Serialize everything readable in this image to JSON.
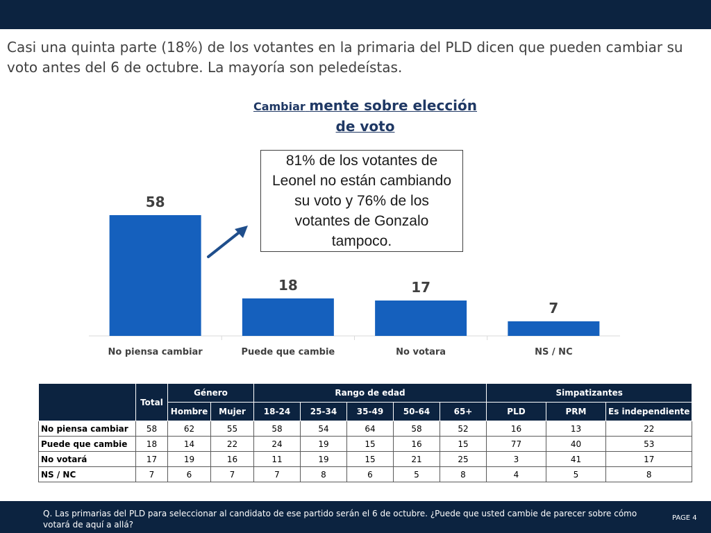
{
  "headline": "Casi una quinta parte (18%) de los votantes en la primaria del PLD dicen que pueden cambiar su voto antes del 6 de octubre. La mayoría son peledeístas.",
  "chart_title": {
    "part1": "Cambiar",
    "part2": "mente sobre elección de voto"
  },
  "callout": "81% de los votantes de Leonel no están cambiando su voto y 76% de los votantes de Gonzalo tampoco.",
  "colors": {
    "bar": "#1560bd",
    "header": "#0c2340",
    "arrow": "#1f4e8c"
  },
  "chart_data": {
    "type": "bar",
    "categories": [
      "No piensa cambiar",
      "Puede que cambie",
      "No votara",
      "NS / NC"
    ],
    "values": [
      58,
      18,
      17,
      7
    ],
    "title": "Cambiar mente sobre elección de voto",
    "xlabel": "",
    "ylabel": "",
    "ylim": [
      0,
      60
    ],
    "grid": false,
    "data_labels": true
  },
  "table": {
    "total_label": "Total",
    "groups": [
      {
        "label": "Género",
        "columns": [
          "Hombre",
          "Mujer"
        ]
      },
      {
        "label": "Rango de edad",
        "columns": [
          "18-24",
          "25-34",
          "35-49",
          "50-64",
          "65+"
        ]
      },
      {
        "label": "Simpatizantes",
        "columns": [
          "PLD",
          "PRM",
          "Es independiente"
        ]
      }
    ],
    "rows": [
      {
        "label": "No piensa cambiar",
        "values": [
          58,
          62,
          55,
          58,
          54,
          64,
          58,
          52,
          16,
          13,
          22
        ]
      },
      {
        "label": "Puede que cambie",
        "values": [
          18,
          14,
          22,
          24,
          19,
          15,
          16,
          15,
          77,
          40,
          53
        ]
      },
      {
        "label": "No votará",
        "values": [
          17,
          19,
          16,
          11,
          19,
          15,
          21,
          25,
          3,
          41,
          17
        ]
      },
      {
        "label": "NS / NC",
        "values": [
          7,
          6,
          7,
          7,
          8,
          6,
          5,
          8,
          4,
          5,
          8
        ]
      }
    ]
  },
  "footnote": "Q. Las primarias del PLD para seleccionar al candidato de ese partido serán el 6 de octubre. ¿Puede que usted cambie de parecer sobre cómo votará de aquí a allá?",
  "page_label": "PAGE 4"
}
